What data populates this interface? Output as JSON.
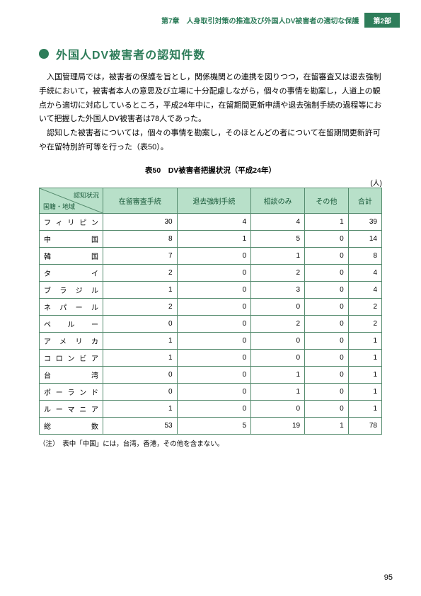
{
  "header": {
    "chapter": "第7章　人身取引対策の推進及び外国人DV被害者の適切な保護",
    "part": "第2部"
  },
  "section": {
    "title": "外国人DV被害者の認知件数"
  },
  "paragraphs": [
    "入国管理局では，被害者の保護を旨とし，関係機関との連携を図りつつ，在留審査又は退去強制手続において，被害者本人の意思及び立場に十分配慮しながら，個々の事情を勘案し，人道上の観点から適切に対応しているところ，平成24年中に，在留期間更新申請や退去強制手続の過程等において把握した外国人DV被害者は78人であった。",
    "認知した被害者については，個々の事情を勘案し，そのほとんどの者について在留期間更新許可や在留特別許可等を行った（表50）。"
  ],
  "table": {
    "caption": "表50　DV被害者把握状況（平成24年）",
    "unit": "(人)",
    "corner_top": "認知状況",
    "corner_bottom": "国籍・地域",
    "headers": [
      "在留審査手続",
      "退去強制手続",
      "相談のみ",
      "その他",
      "合計"
    ],
    "rows": [
      {
        "label": "フィリピン",
        "vals": [
          "30",
          "4",
          "4",
          "1",
          "39"
        ]
      },
      {
        "label": "中国",
        "vals": [
          "8",
          "1",
          "5",
          "0",
          "14"
        ]
      },
      {
        "label": "韓国",
        "vals": [
          "7",
          "0",
          "1",
          "0",
          "8"
        ]
      },
      {
        "label": "タイ",
        "vals": [
          "2",
          "0",
          "2",
          "0",
          "4"
        ]
      },
      {
        "label": "ブラジル",
        "vals": [
          "1",
          "0",
          "3",
          "0",
          "4"
        ]
      },
      {
        "label": "ネパール",
        "vals": [
          "2",
          "0",
          "0",
          "0",
          "2"
        ]
      },
      {
        "label": "ペルー",
        "vals": [
          "0",
          "0",
          "2",
          "0",
          "2"
        ]
      },
      {
        "label": "アメリカ",
        "vals": [
          "1",
          "0",
          "0",
          "0",
          "1"
        ]
      },
      {
        "label": "コロンビア",
        "vals": [
          "1",
          "0",
          "0",
          "0",
          "1"
        ]
      },
      {
        "label": "台湾",
        "vals": [
          "0",
          "0",
          "1",
          "0",
          "1"
        ]
      },
      {
        "label": "ポーランド",
        "vals": [
          "0",
          "0",
          "1",
          "0",
          "1"
        ]
      },
      {
        "label": "ルーマニア",
        "vals": [
          "1",
          "0",
          "0",
          "0",
          "1"
        ]
      },
      {
        "label": "総数",
        "vals": [
          "53",
          "5",
          "19",
          "1",
          "78"
        ]
      }
    ]
  },
  "note": "（注）　表中「中国」には，台湾，香港，その他を含まない。",
  "pageNumber": "95",
  "colors": {
    "accent": "#2e7d5a",
    "headerBg": "#b8e0c9",
    "border": "#558b6e"
  }
}
